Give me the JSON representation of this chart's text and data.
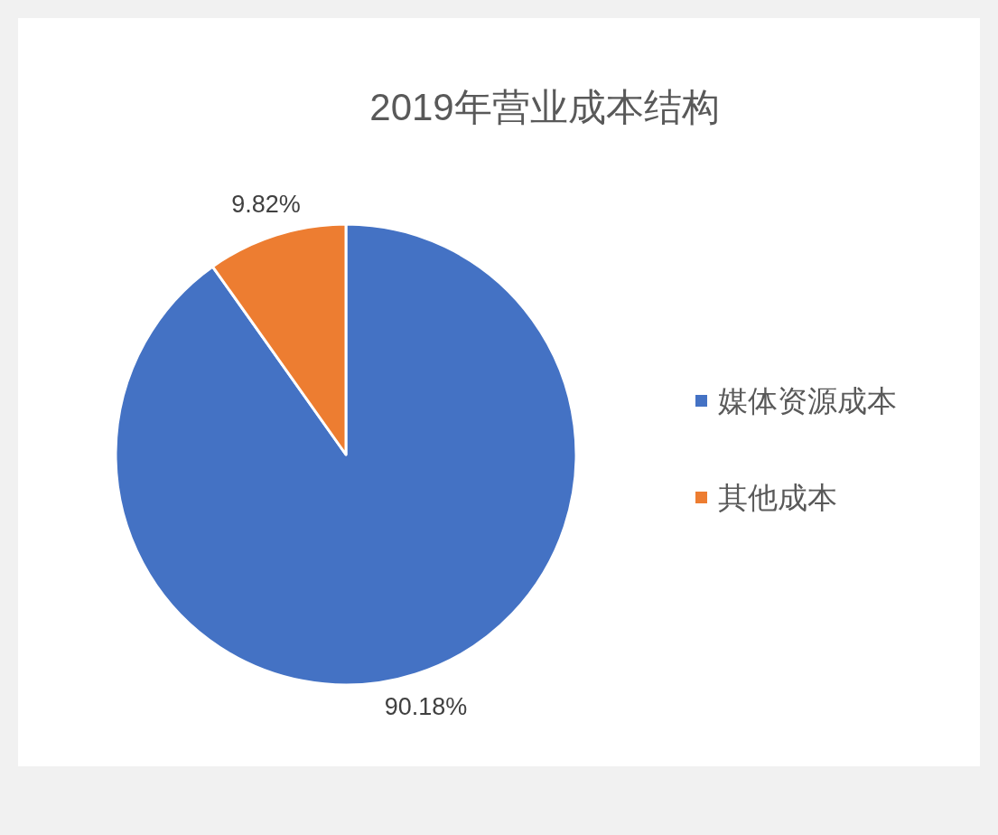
{
  "chart_data": {
    "type": "pie",
    "title": "2019年营业成本结构",
    "categories": [
      "媒体资源成本",
      "其他成本"
    ],
    "values": [
      90.18,
      9.82
    ],
    "colors": [
      "#4472c4",
      "#ed7d31"
    ],
    "value_labels": [
      "90.18%",
      "9.82%"
    ],
    "legend": "right"
  }
}
